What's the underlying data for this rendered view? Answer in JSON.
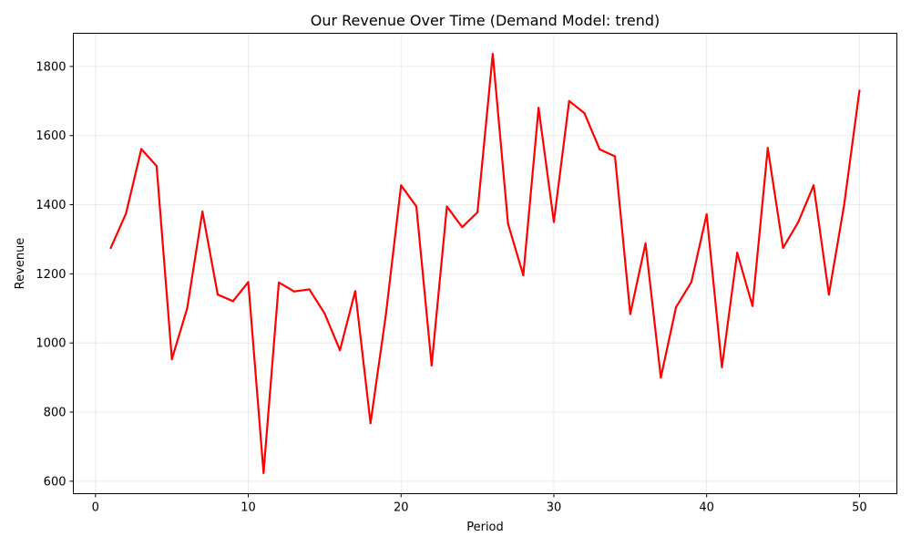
{
  "chart_data": {
    "type": "line",
    "title": "Our Revenue Over Time (Demand Model: trend)",
    "xlabel": "Period",
    "ylabel": "Revenue",
    "xlim": [
      -1.45,
      52.45
    ],
    "ylim": [
      564,
      1896
    ],
    "xticks": [
      0,
      10,
      20,
      30,
      40,
      50
    ],
    "yticks": [
      600,
      800,
      1000,
      1200,
      1400,
      1600,
      1800
    ],
    "grid": true,
    "series": [
      {
        "color": "#ff0000",
        "x": [
          1,
          2,
          3,
          4,
          5,
          6,
          7,
          8,
          9,
          10,
          11,
          12,
          13,
          14,
          15,
          16,
          17,
          18,
          19,
          20,
          21,
          22,
          23,
          24,
          25,
          26,
          27,
          28,
          29,
          30,
          31,
          32,
          33,
          34,
          35,
          36,
          37,
          38,
          39,
          40,
          41,
          42,
          43,
          44,
          45,
          46,
          47,
          48,
          49,
          50
        ],
        "values": [
          1275,
          1375,
          1561,
          1512,
          953,
          1100,
          1380,
          1140,
          1121,
          1176,
          624,
          1175,
          1149,
          1155,
          1085,
          979,
          1150,
          768,
          1080,
          1456,
          1395,
          935,
          1395,
          1335,
          1378,
          1836,
          1345,
          1196,
          1680,
          1350,
          1700,
          1665,
          1560,
          1540,
          1084,
          1288,
          900,
          1104,
          1176,
          1372,
          930,
          1261,
          1107,
          1564,
          1275,
          1350,
          1456,
          1140,
          1400,
          1730
        ]
      }
    ]
  }
}
